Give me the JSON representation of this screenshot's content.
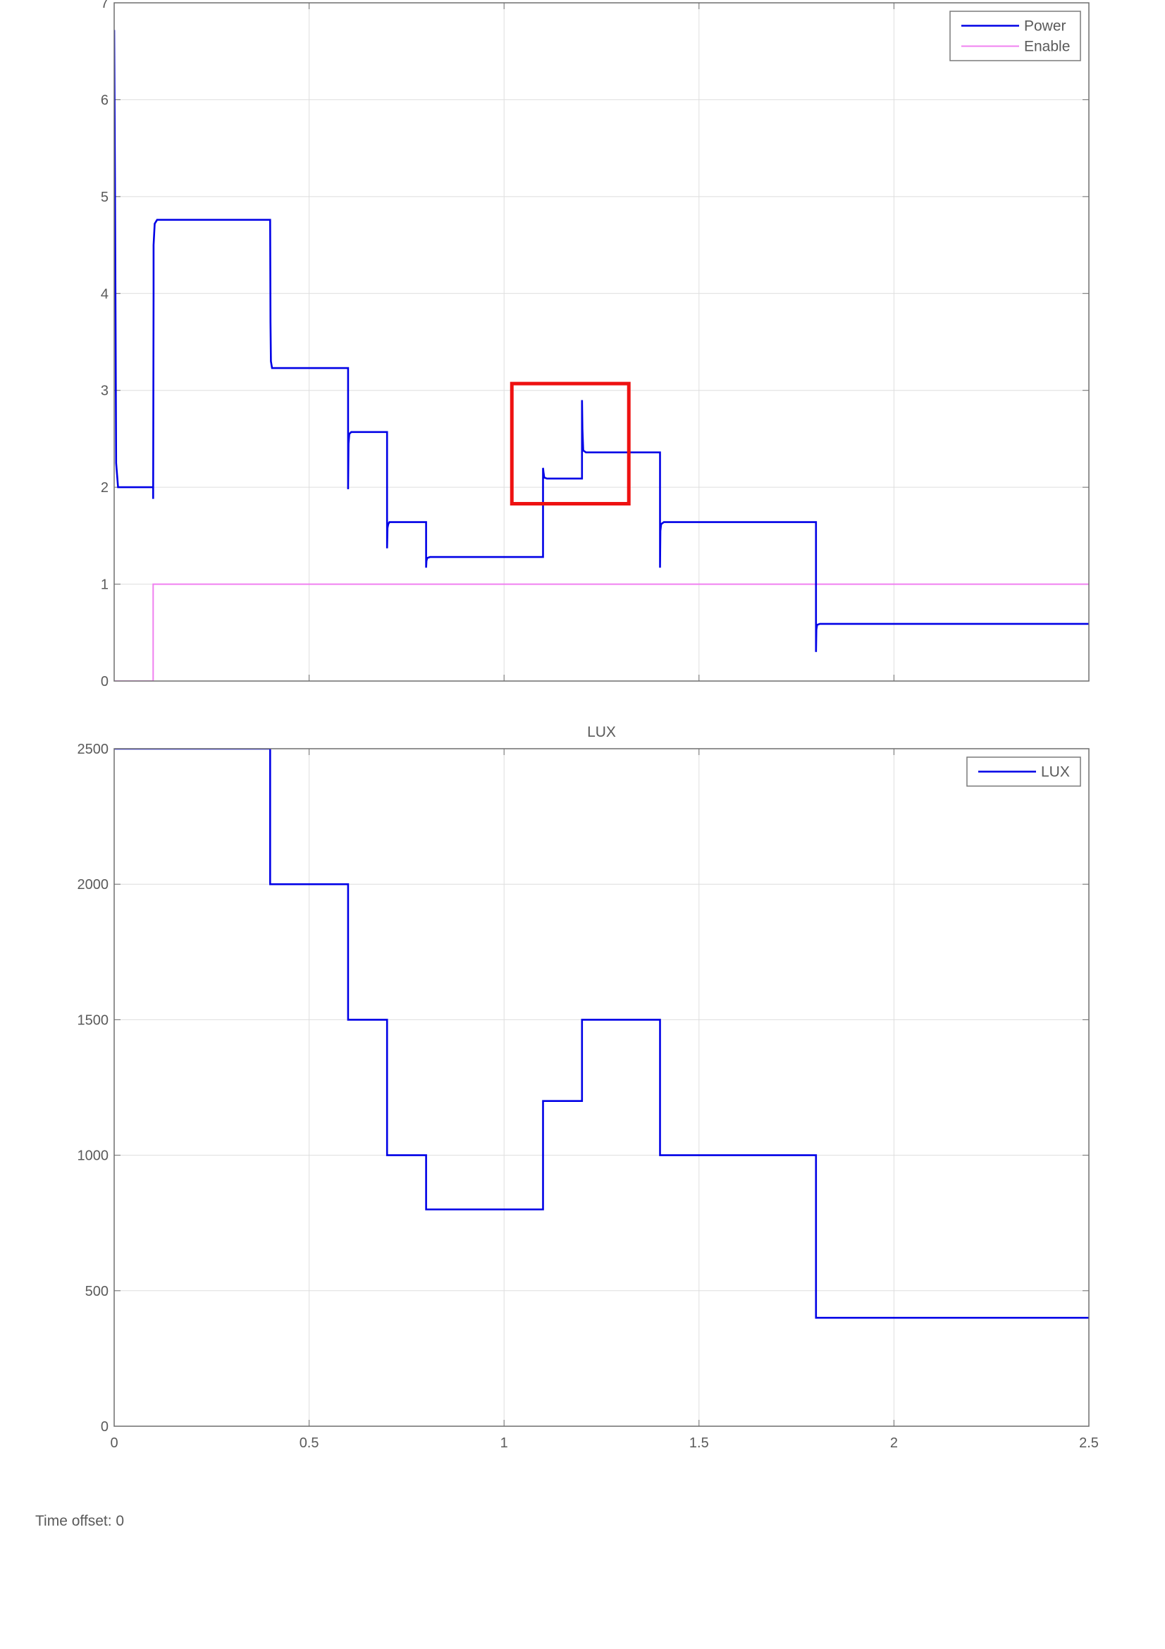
{
  "chart_data": [
    {
      "type": "line",
      "title": "",
      "xlabel": "",
      "ylabel": "",
      "xlim": [
        0,
        2.5
      ],
      "ylim": [
        0,
        7
      ],
      "x_ticks": [
        0,
        0.5,
        1,
        1.5,
        2,
        2.5
      ],
      "y_ticks": [
        0,
        1,
        2,
        3,
        4,
        5,
        6,
        7
      ],
      "y_tick_labels": [
        "0",
        "1",
        "2",
        "3",
        "4",
        "5",
        "6",
        "7"
      ],
      "show_x_tick_labels": false,
      "grid": true,
      "legend_position": "top-right",
      "series": [
        {
          "name": "Power",
          "color": "#0000e6",
          "x": [
            0,
            0,
            0.002,
            0.005,
            0.01,
            0.1,
            0.1,
            0.101,
            0.101,
            0.104,
            0.11,
            0.4,
            0.401,
            0.402,
            0.405,
            0.42,
            0.6,
            0.6,
            0.601,
            0.603,
            0.608,
            0.7,
            0.7,
            0.701,
            0.703,
            0.706,
            0.8,
            0.8,
            0.801,
            0.803,
            0.81,
            1.1,
            1.1,
            1.101,
            1.103,
            1.11,
            1.2,
            1.2,
            1.201,
            1.203,
            1.21,
            1.4,
            1.4,
            1.401,
            1.403,
            1.41,
            1.8,
            1.8,
            1.801,
            1.803,
            1.81,
            2.5
          ],
          "y": [
            6.3,
            6.72,
            5.2,
            2.25,
            2.0,
            2.0,
            1.88,
            4.0,
            4.5,
            4.72,
            4.76,
            4.76,
            3.7,
            3.3,
            3.23,
            3.23,
            3.23,
            1.98,
            2.45,
            2.55,
            2.57,
            2.57,
            1.37,
            1.58,
            1.62,
            1.64,
            1.64,
            1.17,
            1.24,
            1.27,
            1.28,
            1.28,
            2.2,
            2.16,
            2.1,
            2.09,
            2.09,
            2.9,
            2.6,
            2.38,
            2.36,
            2.36,
            1.17,
            1.55,
            1.62,
            1.64,
            1.64,
            0.3,
            0.53,
            0.58,
            0.59,
            0.59
          ]
        },
        {
          "name": "Enable",
          "color": "#f080f0",
          "x": [
            0,
            0.1,
            0.1,
            2.5
          ],
          "y": [
            0,
            0,
            1,
            1
          ]
        }
      ],
      "annotations": [
        {
          "type": "highlight-rectangle",
          "color": "#ee1111",
          "x_range": [
            1.02,
            1.32
          ],
          "y_range": [
            1.83,
            3.07
          ]
        }
      ]
    },
    {
      "type": "line",
      "title": "LUX",
      "xlabel": "",
      "ylabel": "",
      "xlim": [
        0,
        2.5
      ],
      "ylim": [
        0,
        2500
      ],
      "x_ticks": [
        0,
        0.5,
        1,
        1.5,
        2,
        2.5
      ],
      "x_tick_labels": [
        "0",
        "0.5",
        "1",
        "1.5",
        "2",
        "2.5"
      ],
      "y_ticks": [
        0,
        500,
        1000,
        1500,
        2000,
        2500
      ],
      "y_tick_labels": [
        "0",
        "500",
        "1000",
        "1500",
        "2000",
        "2500"
      ],
      "show_x_tick_labels": true,
      "grid": true,
      "legend_position": "top-right",
      "series": [
        {
          "name": "LUX",
          "color": "#0000e6",
          "x": [
            0,
            0.4,
            0.4,
            0.6,
            0.6,
            0.7,
            0.7,
            0.8,
            0.8,
            1.1,
            1.1,
            1.2,
            1.2,
            1.4,
            1.4,
            1.8,
            1.8,
            2.5
          ],
          "y": [
            2500,
            2500,
            2000,
            2000,
            1500,
            1500,
            1000,
            1000,
            800,
            800,
            1200,
            1200,
            1500,
            1500,
            1000,
            1000,
            400,
            400
          ]
        }
      ]
    }
  ],
  "footer": {
    "time_offset_label": "Time offset: 0"
  }
}
